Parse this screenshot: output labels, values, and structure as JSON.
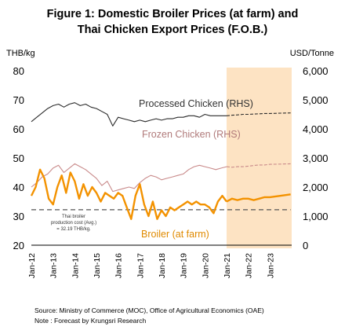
{
  "title_line1": "Figure 1: Domestic Broiler Prices (at farm) and",
  "title_line2": "Thai Chicken Export Prices (F.O.B.)",
  "left_unit": "THB/kg",
  "right_unit": "USD/Tonne",
  "source": "Source: Ministry of Commerce (MOC), Office of Agricultural Economics (OAE)",
  "note": "Note : Forecast by Krungsri Research",
  "colors": {
    "broiler": "#f39200",
    "processed": "#2b2b2b",
    "frozen": "#c98a8a",
    "forecast_band": "#fde3c3",
    "cost_line": "#555555"
  },
  "chart_data": {
    "type": "line",
    "x": [
      "Jan-12",
      "Jan-13",
      "Jan-14",
      "Jan-15",
      "Jan-16",
      "Jan-17",
      "Jan-18",
      "Jan-19",
      "Jan-20",
      "Jan-21",
      "Jan-22",
      "Jan-23"
    ],
    "ylim": [
      20,
      80
    ],
    "y_ticks": [
      "20",
      "30",
      "40",
      "50",
      "60",
      "70",
      "80"
    ],
    "y2lim": [
      0,
      6000
    ],
    "y2_ticks": [
      "0",
      "1,000",
      "2,000",
      "3,000",
      "4,000",
      "5,000",
      "6,000"
    ],
    "forecast_from": "Jan-21",
    "series": [
      {
        "name": "Processed Chicken (RHS)",
        "axis": "right",
        "x": [
          2012.0,
          2012.25,
          2012.5,
          2012.75,
          2013.0,
          2013.25,
          2013.5,
          2013.75,
          2014.0,
          2014.25,
          2014.5,
          2014.75,
          2015.0,
          2015.25,
          2015.5,
          2015.75,
          2016.0,
          2016.25,
          2016.5,
          2016.75,
          2017.0,
          2017.25,
          2017.5,
          2017.75,
          2018.0,
          2018.25,
          2018.5,
          2018.75,
          2019.0,
          2019.25,
          2019.5,
          2019.75,
          2020.0,
          2020.25,
          2020.5,
          2020.75,
          2021.0,
          2021.25,
          2021.5,
          2021.75,
          2022.0,
          2022.25,
          2022.5,
          2022.75,
          2023.0,
          2023.5,
          2023.95
        ],
        "values": [
          4250,
          4400,
          4550,
          4700,
          4800,
          4850,
          4750,
          4850,
          4900,
          4800,
          4850,
          4750,
          4700,
          4600,
          4500,
          4100,
          4400,
          4350,
          4300,
          4250,
          4300,
          4250,
          4300,
          4350,
          4300,
          4350,
          4350,
          4400,
          4400,
          4450,
          4450,
          4400,
          4500,
          4450,
          4450,
          4450,
          4450,
          4470,
          4480,
          4500,
          4500,
          4510,
          4520,
          4530,
          4530,
          4540,
          4550
        ]
      },
      {
        "name": "Frozen Chicken (RHS)",
        "axis": "right",
        "x": [
          2012.0,
          2012.25,
          2012.5,
          2012.75,
          2013.0,
          2013.25,
          2013.5,
          2013.75,
          2014.0,
          2014.25,
          2014.5,
          2014.75,
          2015.0,
          2015.25,
          2015.5,
          2015.75,
          2016.0,
          2016.25,
          2016.5,
          2016.75,
          2017.0,
          2017.25,
          2017.5,
          2017.75,
          2018.0,
          2018.25,
          2018.5,
          2018.75,
          2019.0,
          2019.25,
          2019.5,
          2019.75,
          2020.0,
          2020.25,
          2020.5,
          2020.75,
          2021.0,
          2021.25,
          2021.5,
          2021.75,
          2022.0,
          2022.25,
          2022.5,
          2022.75,
          2023.0,
          2023.5,
          2023.95
        ],
        "values": [
          2000,
          2150,
          2350,
          2450,
          2650,
          2750,
          2500,
          2650,
          2800,
          2700,
          2600,
          2450,
          2300,
          2050,
          2200,
          1850,
          1900,
          1950,
          2000,
          1950,
          2150,
          2300,
          2400,
          2350,
          2250,
          2300,
          2350,
          2400,
          2450,
          2600,
          2700,
          2750,
          2700,
          2650,
          2600,
          2650,
          2700,
          2680,
          2700,
          2700,
          2720,
          2740,
          2760,
          2760,
          2780,
          2790,
          2800
        ]
      },
      {
        "name": "Broiler (at farm)",
        "axis": "left",
        "x": [
          2012.0,
          2012.2,
          2012.4,
          2012.6,
          2012.8,
          2013.0,
          2013.2,
          2013.4,
          2013.6,
          2013.8,
          2014.0,
          2014.2,
          2014.4,
          2014.6,
          2014.8,
          2015.0,
          2015.2,
          2015.4,
          2015.6,
          2015.8,
          2016.0,
          2016.2,
          2016.4,
          2016.6,
          2016.8,
          2017.0,
          2017.2,
          2017.4,
          2017.6,
          2017.8,
          2018.0,
          2018.2,
          2018.4,
          2018.6,
          2018.8,
          2019.0,
          2019.2,
          2019.4,
          2019.6,
          2019.8,
          2020.0,
          2020.2,
          2020.4,
          2020.6,
          2020.8,
          2021.0,
          2021.25,
          2021.5,
          2021.75,
          2022.0,
          2022.25,
          2022.5,
          2022.75,
          2023.0,
          2023.5,
          2023.95
        ],
        "values": [
          37,
          40,
          46,
          43,
          36,
          34,
          40,
          44,
          38,
          45,
          42,
          36,
          41,
          37,
          40,
          38,
          35,
          38,
          37,
          36,
          38,
          37,
          33,
          29,
          37,
          41,
          34,
          30,
          35,
          29,
          32,
          30,
          33,
          32,
          33,
          34,
          35,
          34,
          35,
          34,
          34,
          33,
          31,
          35,
          37,
          35,
          36,
          35.5,
          36,
          36,
          35.5,
          36,
          36.5,
          36.5,
          37,
          37.5
        ]
      },
      {
        "name": "Thai broiler production cost (Avg.) = 32.19 THB/kg.",
        "axis": "left",
        "x": [
          2012.0,
          2023.95
        ],
        "values": [
          32.19,
          32.19
        ]
      }
    ],
    "annotations": {
      "processed_label": "Processed Chicken (RHS)",
      "frozen_label": "Frozen Chicken (RHS)",
      "broiler_label": "Broiler (at farm)",
      "cost_line1": "Thai broiler",
      "cost_line2": "production cost (Avg.)",
      "cost_line3": "= 32.19 THB/kg."
    }
  }
}
